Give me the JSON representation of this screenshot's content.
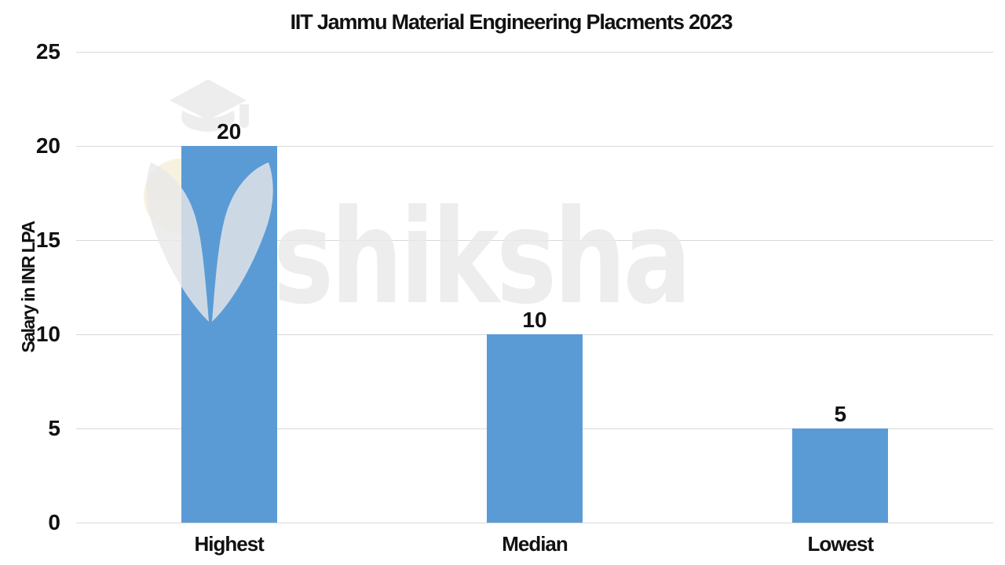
{
  "chart_data": {
    "type": "bar",
    "title": "IIT Jammu Material Engineering Placments 2023",
    "categories": [
      "Highest",
      "Median",
      "Lowest"
    ],
    "values": [
      20,
      10,
      5
    ],
    "xlabel": "",
    "ylabel": "Salary in INR LPA",
    "ylim": [
      0,
      25
    ],
    "yticks": [
      0,
      5,
      10,
      15,
      20,
      25
    ],
    "grid": true,
    "legend_position": "none",
    "show_data_labels": true,
    "bar_color": "#5B9BD5",
    "gridline_color": "#D9D9D9",
    "text_color": "#111111"
  },
  "watermark": {
    "text": "shiksha",
    "icons": [
      "graduation-cap-icon",
      "pen-nib-icon"
    ],
    "color": "#E9E9E9",
    "accent_color": "#F7F2E0"
  }
}
